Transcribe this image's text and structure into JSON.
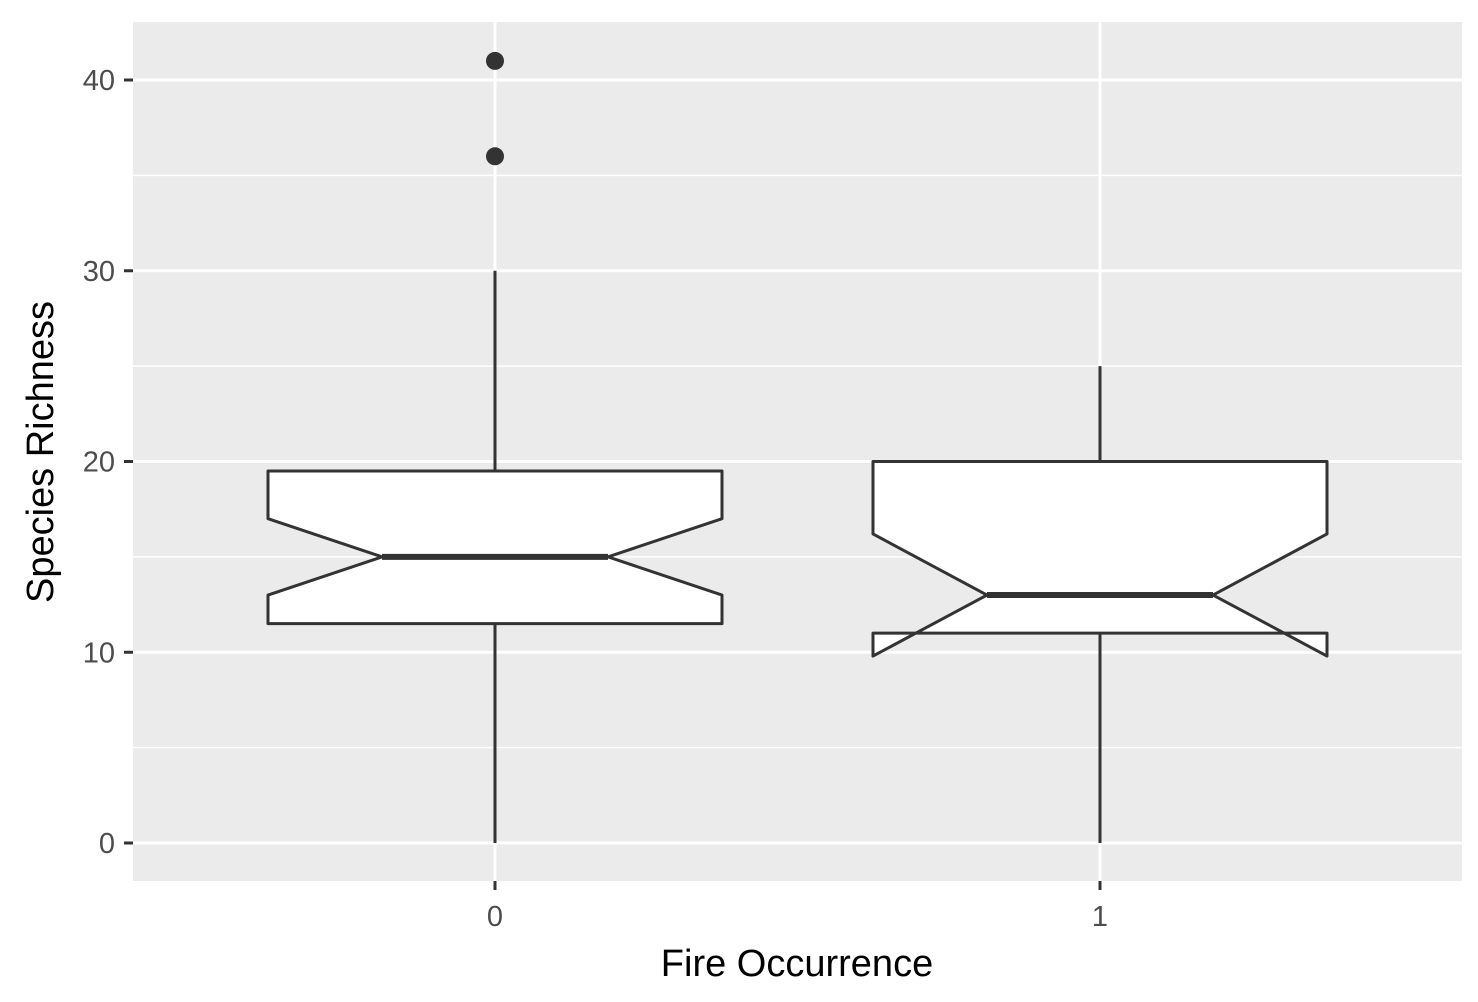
{
  "chart_data": {
    "type": "boxplot",
    "notched": true,
    "xlabel": "Fire Occurrence",
    "ylabel": "Species Richness",
    "categories": [
      "0",
      "1"
    ],
    "y_ticks": [
      0,
      10,
      20,
      30,
      40
    ],
    "ylim": [
      -2,
      43
    ],
    "grid": true,
    "boxes": [
      {
        "category": "0",
        "whisker_low": 0,
        "q1": 11.5,
        "notch_low": 13,
        "median": 15,
        "notch_high": 17,
        "q3": 19.5,
        "whisker_high": 30,
        "outliers": [
          36,
          41
        ]
      },
      {
        "category": "1",
        "whisker_low": 0,
        "q1": 11,
        "notch_low": 9.8,
        "median": 13,
        "notch_high": 16.2,
        "q3": 20,
        "whisker_high": 25,
        "outliers": []
      }
    ],
    "colors": {
      "panel": "#ebebeb",
      "grid": "#ffffff",
      "box_fill": "#ffffff",
      "box_line": "#333333",
      "axis_text": "#4d4d4d",
      "title_text": "#000000"
    }
  }
}
